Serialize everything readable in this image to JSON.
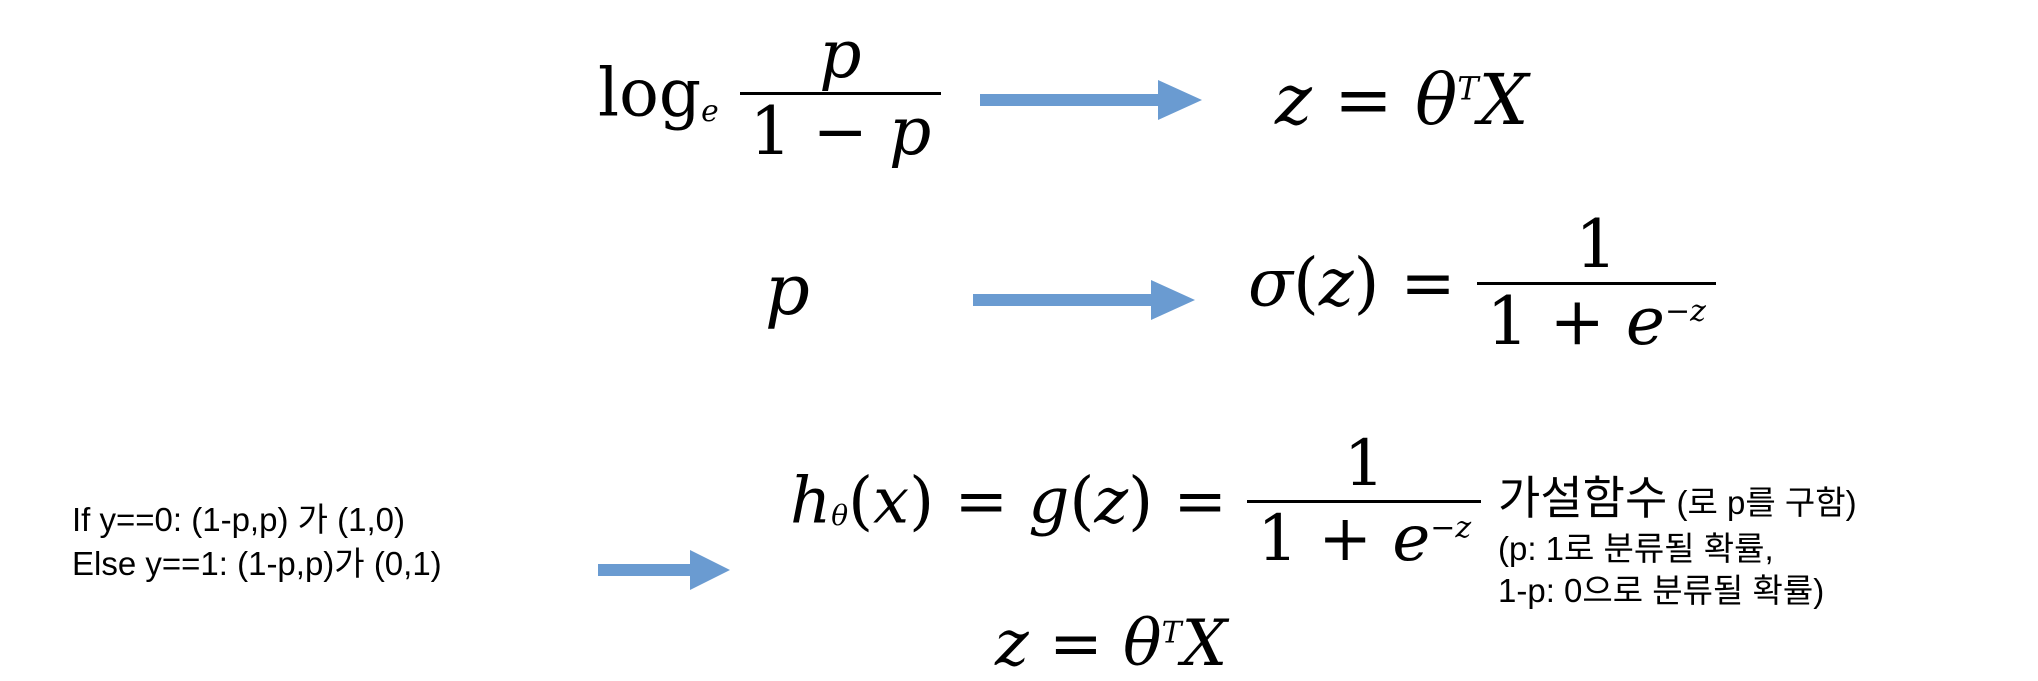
{
  "arrow_color": "#6a9bd1",
  "row1": {
    "left": {
      "log": "log",
      "log_base": "e",
      "num": "p",
      "den_one": "1",
      "den_minus": "−",
      "den_p": "p"
    },
    "right": {
      "z": "z",
      "eq": "=",
      "theta": "θ",
      "sup_T": "T",
      "X": "X"
    }
  },
  "row2": {
    "left": {
      "p": "p"
    },
    "right": {
      "sigma": "σ",
      "lp": "(",
      "z": "z",
      "rp": ")",
      "eq": "=",
      "num": "1",
      "den_one": "1",
      "plus": "+",
      "e": "e",
      "exp": "−z"
    }
  },
  "row3": {
    "hypothesis": {
      "h": "h",
      "sub_theta": "θ",
      "lp": "(",
      "x": "x",
      "rp": ")",
      "eq1": "=",
      "g": "g",
      "lp2": "(",
      "z": "z",
      "rp2": ")",
      "eq2": "=",
      "num": "1",
      "den_one": "1",
      "plus": "+",
      "e": "e",
      "exp": "−z"
    },
    "z_line": {
      "z": "z",
      "eq": "=",
      "theta": "θ",
      "sup_T": "T",
      "X": "X"
    },
    "label_main": "가설함수",
    "label_rest": " (로 p를 구함)",
    "note_line1": "(p: 1로 분류될 확률,",
    "note_line2": "1-p: 0으로 분류될 확률)"
  },
  "condition": {
    "line1": "If y==0: (1-p,p) 가 (1,0)",
    "line2": "Else y==1: (1-p,p)가 (0,1)"
  }
}
